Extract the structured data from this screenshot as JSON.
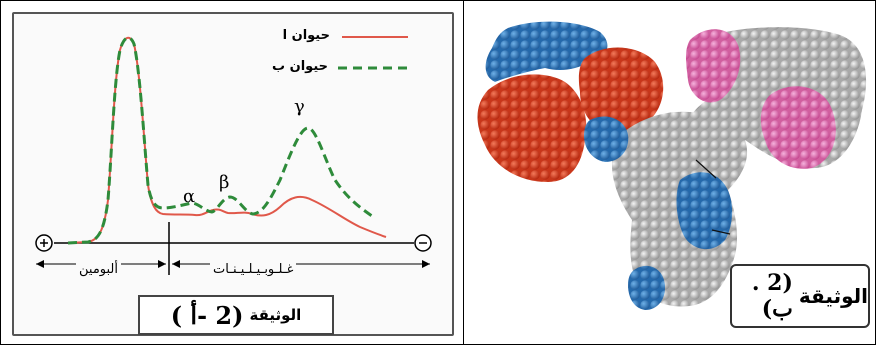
{
  "document_a": {
    "label_word": "الوثيقة",
    "label_number": "(2 -أ )",
    "legend": {
      "animal_a": "حيوان ا",
      "animal_b": "حيوان ب"
    },
    "greek": {
      "alpha": "α",
      "beta": "β",
      "gamma": "γ"
    },
    "ranges": {
      "albumin": "ألبومين",
      "globulins": "غـلـوبـيـلـيـنـات"
    },
    "poles": {
      "positive": "+",
      "negative": "−"
    },
    "colors": {
      "animal_a": "#e0584a",
      "animal_b": "#2e8b3a"
    }
  },
  "document_b": {
    "label_word": "الوثيقة",
    "label_number": "(2 . ب)",
    "colors": {
      "red": "#d4391c",
      "blue": "#2f7fc4",
      "pink": "#e07ab8",
      "grey": "#c8c8c8"
    }
  }
}
